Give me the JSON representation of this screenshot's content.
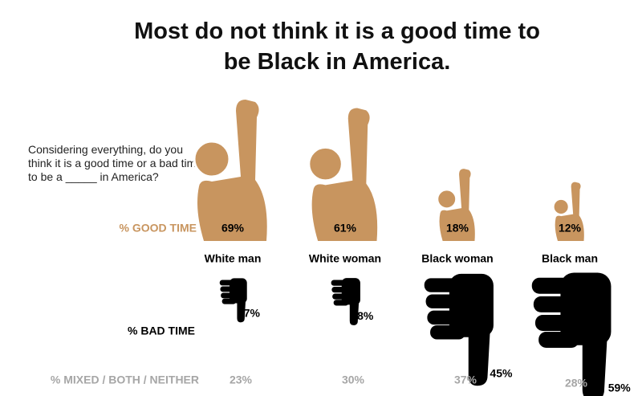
{
  "chart_data": {
    "type": "pictogram",
    "title": "Most do not think it is a good time to be Black in America.",
    "subtitle": "Considering everything, do you think it is a good time or a bad time to be a _____ in America?",
    "categories": [
      "White man",
      "White woman",
      "Black woman",
      "Black man"
    ],
    "series": [
      {
        "name": "% GOOD TIME",
        "color": "#c8955f",
        "values": [
          69,
          61,
          18,
          12
        ],
        "value_labels": [
          "69%",
          "61%",
          "18%",
          "12%"
        ]
      },
      {
        "name": "% BAD TIME",
        "color": "#000000",
        "values": [
          7,
          8,
          45,
          59
        ],
        "value_labels": [
          "7%",
          "8%",
          "45%",
          "59%"
        ]
      },
      {
        "name": "% MIXED / BOTH / NEITHER",
        "color": "#a6a6a6",
        "values": [
          23,
          30,
          37,
          28
        ],
        "value_labels": [
          "23%",
          "30%",
          "37%",
          "28%"
        ]
      }
    ]
  }
}
